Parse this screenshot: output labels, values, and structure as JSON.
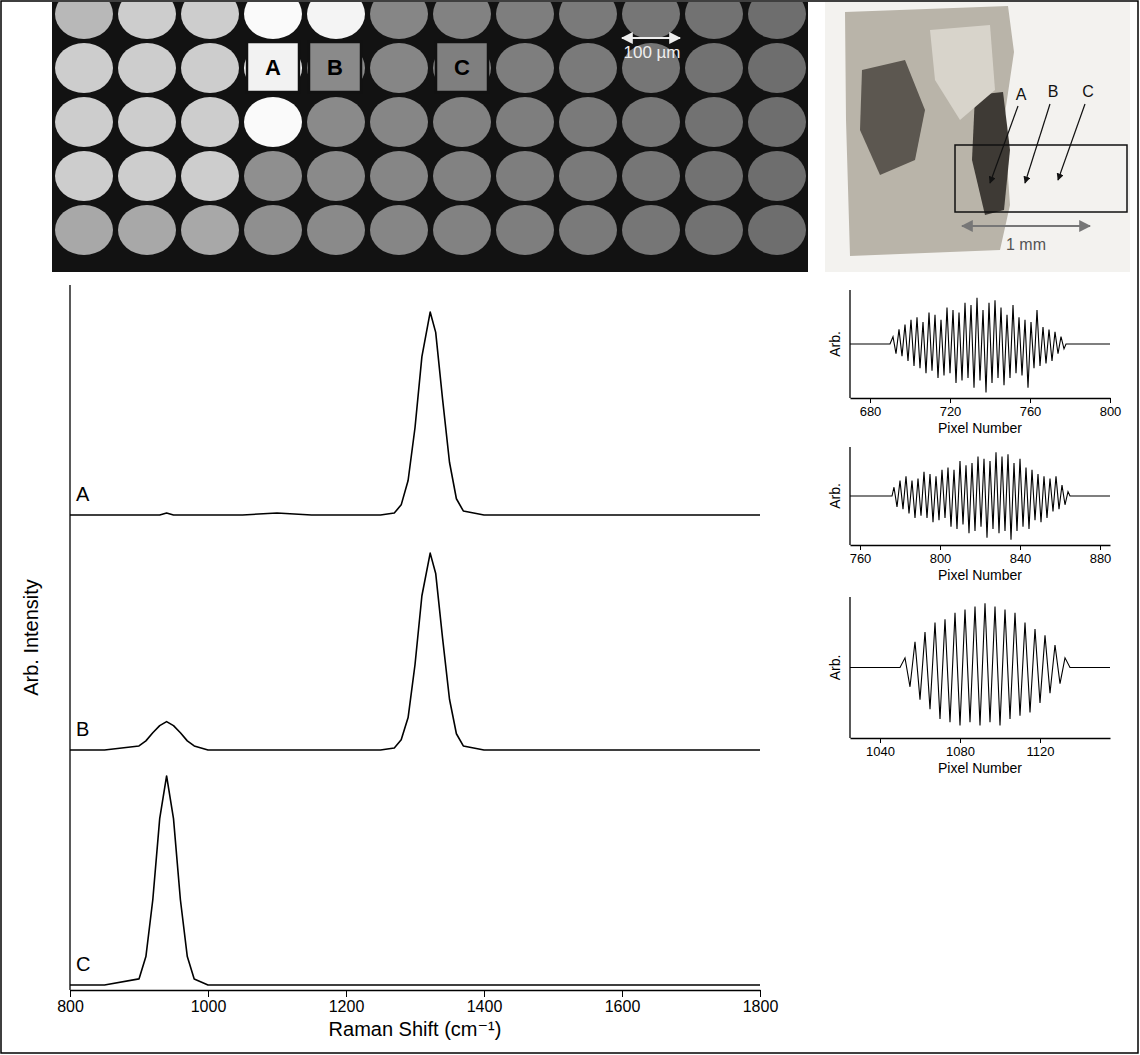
{
  "chart_data": [
    {
      "type": "line",
      "x_label": "Raman Shift (cm⁻¹)",
      "y_label": "Arb. Intensity",
      "x": [
        800,
        850,
        900,
        910,
        920,
        930,
        940,
        950,
        960,
        970,
        980,
        1000,
        1050,
        1100,
        1150,
        1200,
        1250,
        1270,
        1280,
        1290,
        1300,
        1310,
        1322,
        1330,
        1340,
        1350,
        1360,
        1370,
        1400,
        1500,
        1600,
        1700,
        1800
      ],
      "series": [
        {
          "name": "A",
          "color": "#000000",
          "values": [
            0,
            0,
            0,
            0,
            0,
            0,
            0.01,
            0,
            0,
            0,
            0,
            0,
            0,
            0.01,
            0,
            0,
            0,
            0.01,
            0.05,
            0.17,
            0.43,
            0.78,
            1.0,
            0.9,
            0.57,
            0.26,
            0.08,
            0.02,
            0,
            0,
            0,
            0,
            0
          ]
        },
        {
          "name": "B",
          "color": "#000000",
          "values": [
            0,
            0,
            0.02,
            0.045,
            0.085,
            0.12,
            0.14,
            0.12,
            0.085,
            0.045,
            0.02,
            0,
            0,
            0,
            0,
            0,
            0,
            0.01,
            0.05,
            0.16,
            0.42,
            0.76,
            0.97,
            0.87,
            0.55,
            0.25,
            0.08,
            0.02,
            0,
            0,
            0,
            0,
            0
          ]
        },
        {
          "name": "C",
          "color": "#000000",
          "values": [
            0,
            0,
            0.03,
            0.14,
            0.42,
            0.82,
            1.03,
            0.82,
            0.42,
            0.14,
            0.03,
            0,
            0,
            0,
            0,
            0,
            0,
            0,
            0,
            0,
            0,
            0,
            0,
            0,
            0,
            0,
            0,
            0,
            0,
            0,
            0,
            0,
            0
          ]
        }
      ],
      "xlim": [
        800,
        1800
      ],
      "xticks": [
        800,
        1000,
        1200,
        1400,
        1600,
        1800
      ],
      "ylim": [
        0,
        1.1
      ],
      "tick_labels": "x"
    },
    {
      "type": "line",
      "x_label": "Pixel Number",
      "y_label": "Arb.",
      "x": [
        670,
        690,
        691.5,
        693,
        694.5,
        696,
        697.5,
        699,
        700.5,
        702,
        703.5,
        705,
        706.5,
        708,
        709.5,
        711,
        712.5,
        714,
        715.5,
        717,
        718.5,
        720,
        721.5,
        723,
        724.5,
        726,
        727.5,
        729,
        730.5,
        732,
        733.5,
        735,
        736.5,
        738,
        739.5,
        741,
        742.5,
        744,
        745.5,
        747,
        748.5,
        750,
        751.5,
        753,
        754.5,
        756,
        757.5,
        759,
        760.5,
        762,
        763.5,
        765,
        766.5,
        768,
        769.5,
        771,
        772.5,
        774,
        775.5,
        777,
        778,
        800
      ],
      "series": [
        {
          "color": "#000000",
          "values": [
            0,
            0,
            0.15,
            -0.2,
            0.3,
            -0.25,
            0.4,
            -0.35,
            0.5,
            -0.45,
            0.55,
            -0.5,
            0.45,
            -0.6,
            0.65,
            -0.55,
            0.6,
            -0.7,
            0.5,
            -0.65,
            0.75,
            -0.6,
            0.7,
            -0.8,
            0.65,
            -0.75,
            0.85,
            -0.7,
            0.8,
            -0.9,
            0.95,
            -0.75,
            0.7,
            -1.0,
            0.85,
            -0.8,
            0.9,
            -0.7,
            0.75,
            -0.85,
            0.6,
            -0.7,
            0.8,
            -0.6,
            0.55,
            -0.65,
            0.5,
            -0.9,
            0.45,
            -0.5,
            0.7,
            -0.45,
            0.35,
            -0.4,
            0.3,
            -0.35,
            0.25,
            -0.2,
            0.15,
            -0.1,
            0,
            0
          ]
        }
      ],
      "xlim": [
        670,
        800
      ],
      "xticks": [
        680,
        720,
        760,
        800
      ],
      "ylim": [
        -1.05,
        1.05
      ],
      "tick_labels": "x"
    },
    {
      "type": "line",
      "x_label": "Pixel Number",
      "y_label": "Arb.",
      "x": [
        755,
        776,
        777,
        778.5,
        780,
        781.5,
        783,
        784.5,
        786,
        787.5,
        789,
        790.5,
        792,
        793.5,
        795,
        796.5,
        798,
        799.5,
        801,
        802.5,
        804,
        805.5,
        807,
        808.5,
        810,
        811.5,
        813,
        814.5,
        816,
        817.5,
        819,
        820.5,
        822,
        823.5,
        825,
        826.5,
        828,
        829.5,
        831,
        832.5,
        834,
        835.5,
        837,
        838.5,
        840,
        841.5,
        843,
        844.5,
        846,
        847.5,
        849,
        850.5,
        852,
        853.5,
        855,
        856.5,
        858,
        859.5,
        861,
        862.5,
        864,
        865,
        885
      ],
      "series": [
        {
          "color": "#000000",
          "values": [
            0,
            0,
            0.2,
            -0.25,
            0.35,
            -0.3,
            0.45,
            -0.4,
            0.35,
            -0.5,
            0.4,
            -0.45,
            0.55,
            -0.5,
            0.5,
            -0.6,
            0.45,
            -0.55,
            0.6,
            -0.5,
            0.65,
            -0.7,
            0.6,
            -0.75,
            0.8,
            -0.65,
            0.7,
            -0.85,
            0.75,
            -0.8,
            0.9,
            -0.7,
            0.85,
            -0.95,
            0.8,
            -0.75,
            1.0,
            -0.85,
            0.9,
            -0.8,
            0.95,
            -1.0,
            0.75,
            -0.8,
            0.85,
            -0.7,
            0.65,
            -0.75,
            0.6,
            -0.55,
            0.5,
            -0.6,
            0.45,
            -0.5,
            0.4,
            -0.35,
            0.45,
            -0.3,
            0.25,
            -0.2,
            0.1,
            0,
            0
          ]
        }
      ],
      "xlim": [
        755,
        885
      ],
      "xticks": [
        760,
        800,
        840,
        880
      ],
      "ylim": [
        -1.05,
        1.05
      ],
      "tick_labels": "x"
    },
    {
      "type": "line",
      "x_label": "Pixel Number",
      "y_label": "Arb.",
      "x": [
        1025,
        1050,
        1052.5,
        1055,
        1057.5,
        1060,
        1062.5,
        1065,
        1067.5,
        1070,
        1072.5,
        1075,
        1077.5,
        1080,
        1082.5,
        1085,
        1087.5,
        1090,
        1092.5,
        1095,
        1097.5,
        1100,
        1102.5,
        1105,
        1107.5,
        1110,
        1112.5,
        1115,
        1117.5,
        1120,
        1122.5,
        1125,
        1127.5,
        1130,
        1132.5,
        1135,
        1155
      ],
      "series": [
        {
          "color": "#000000",
          "values": [
            0,
            0,
            0.15,
            -0.3,
            0.4,
            -0.5,
            0.55,
            -0.65,
            0.7,
            -0.8,
            0.75,
            -0.85,
            0.85,
            -0.9,
            0.9,
            -0.85,
            0.95,
            -0.9,
            1.0,
            -0.85,
            0.95,
            -0.9,
            0.9,
            -0.8,
            0.85,
            -0.75,
            0.7,
            -0.7,
            0.6,
            -0.55,
            0.5,
            -0.4,
            0.35,
            -0.25,
            0.15,
            0,
            0
          ]
        }
      ],
      "xlim": [
        1025,
        1155
      ],
      "xticks": [
        1040,
        1080,
        1120
      ],
      "ylim": [
        -1.05,
        1.05
      ],
      "tick_labels": "x"
    }
  ],
  "micrograph": {
    "labels": [
      "A",
      "B",
      "C"
    ],
    "scale_bar": "100 µm"
  },
  "photo": {
    "labels": [
      "A",
      "B",
      "C"
    ],
    "scale_bar": "1 mm"
  }
}
